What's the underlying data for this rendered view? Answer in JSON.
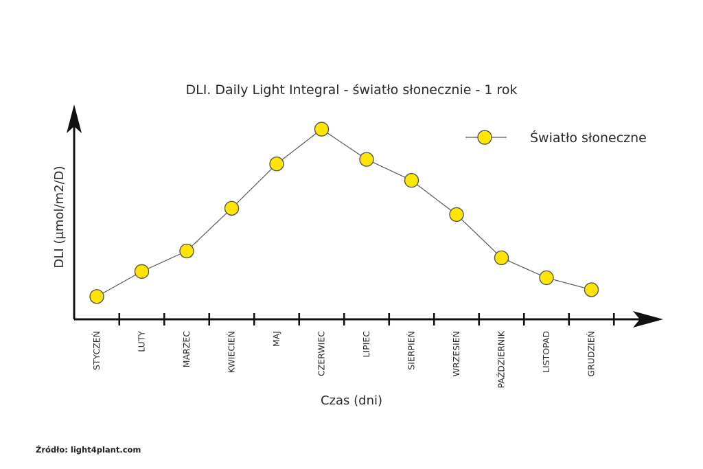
{
  "chart_data": {
    "type": "line",
    "title": "DLI. Daily Light Integral - światło słonecznie - 1 rok",
    "xlabel": "Czas (dni)",
    "ylabel": "DLI (μmol/m2/D)",
    "categories": [
      "STYCZEŃ",
      "LUTY",
      "MARZEC",
      "KWIECIEŃ",
      "MAJ",
      "CZERWIEC",
      "LIPIEC",
      "SIERPIEŃ",
      "WRZESIEŃ",
      "PAŹDZIERNIK",
      "LISTOPAD",
      "GRUDZIEŃ"
    ],
    "series": [
      {
        "name": "Światło słoneczne",
        "values": [
          4.0,
          8.4,
          12.0,
          19.5,
          27.3,
          33.4,
          28.1,
          24.4,
          18.4,
          10.8,
          7.3,
          5.2
        ]
      }
    ],
    "ylim": [
      0,
      38
    ],
    "y_ticks_shown": false,
    "grid": false,
    "legend": "top-right",
    "colors": {
      "marker_fill": "#ffe600",
      "marker_stroke": "#555555",
      "line": "#555555",
      "axis": "#111111"
    }
  },
  "source": "Źródło: light4plant.com"
}
